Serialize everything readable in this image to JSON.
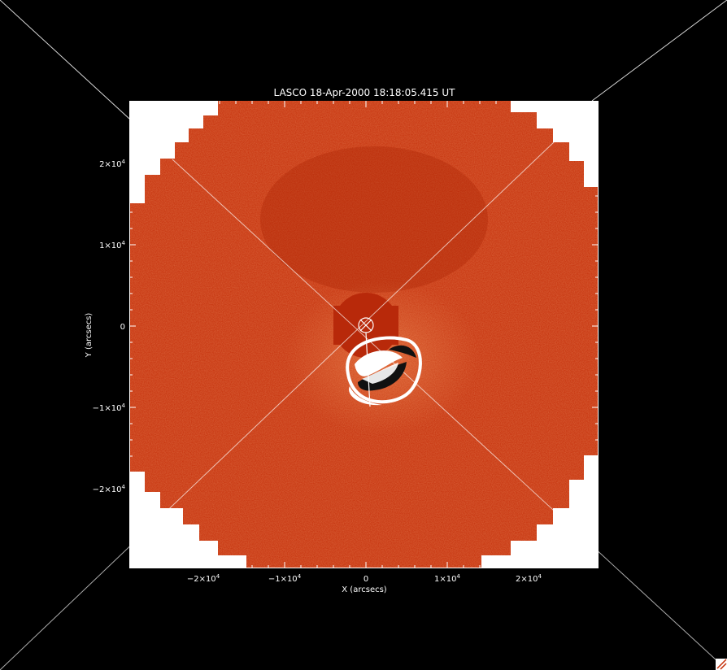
{
  "title": "LASCO  18-Apr-2000 18:18:05.415 UT",
  "x_axis": {
    "label": "X (arcsecs)",
    "ticks": [
      {
        "value": -20000,
        "mantissa": "−2×10",
        "exp": "4"
      },
      {
        "value": -10000,
        "mantissa": "−1×10",
        "exp": "4"
      },
      {
        "value": 0,
        "mantissa": "0",
        "exp": ""
      },
      {
        "value": 10000,
        "mantissa": "1×10",
        "exp": "4"
      },
      {
        "value": 20000,
        "mantissa": "2×10",
        "exp": "4"
      }
    ]
  },
  "y_axis": {
    "label": "Y (arcsecs)",
    "ticks": [
      {
        "value": 20000,
        "mantissa": "2×10",
        "exp": "4"
      },
      {
        "value": 10000,
        "mantissa": "1×10",
        "exp": "4"
      },
      {
        "value": 0,
        "mantissa": "0",
        "exp": ""
      },
      {
        "value": -10000,
        "mantissa": "−1×10",
        "exp": "4"
      },
      {
        "value": -20000,
        "mantissa": "−2×10",
        "exp": "4"
      }
    ]
  },
  "colors": {
    "background": "#000000",
    "frame": "#ffffff",
    "corona": "#c42d08",
    "corona_dark": "#9e1f04",
    "cme": "#ffffff",
    "lines": "#ffffff"
  }
}
